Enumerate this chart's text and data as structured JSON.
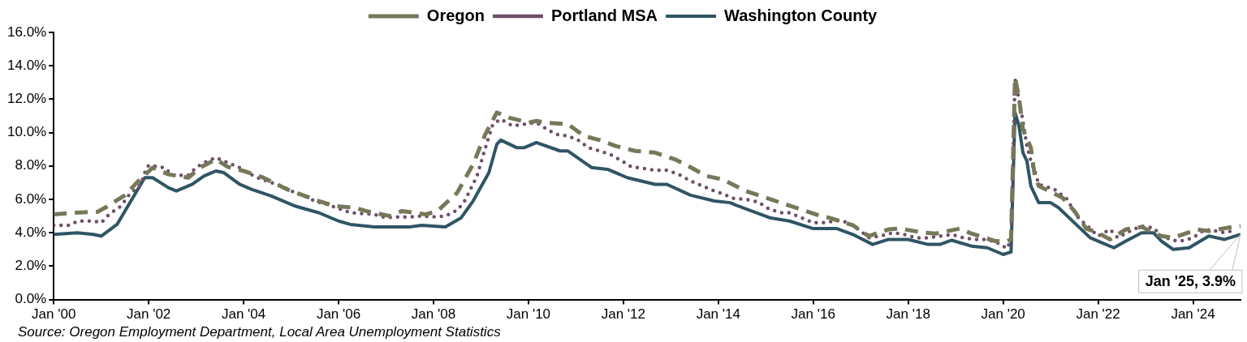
{
  "chart_data": {
    "type": "line",
    "xlim": [
      "2000-01",
      "2025-01"
    ],
    "xticks": [
      {
        "value": "2000-01",
        "label": "Jan '00"
      },
      {
        "value": "2002-01",
        "label": "Jan '02"
      },
      {
        "value": "2004-01",
        "label": "Jan '04"
      },
      {
        "value": "2006-01",
        "label": "Jan '06"
      },
      {
        "value": "2008-01",
        "label": "Jan '08"
      },
      {
        "value": "2010-01",
        "label": "Jan '10"
      },
      {
        "value": "2012-01",
        "label": "Jan '12"
      },
      {
        "value": "2014-01",
        "label": "Jan '14"
      },
      {
        "value": "2016-01",
        "label": "Jan '16"
      },
      {
        "value": "2018-01",
        "label": "Jan '18"
      },
      {
        "value": "2020-01",
        "label": "Jan '20"
      },
      {
        "value": "2022-01",
        "label": "Jan '22"
      },
      {
        "value": "2024-01",
        "label": "Jan '24"
      }
    ],
    "ylim": [
      0,
      16
    ],
    "yticks": [
      {
        "value": 0,
        "label": "0.0%"
      },
      {
        "value": 2,
        "label": "2.0%"
      },
      {
        "value": 4,
        "label": "4.0%"
      },
      {
        "value": 6,
        "label": "6.0%"
      },
      {
        "value": 8,
        "label": "8.0%"
      },
      {
        "value": 10,
        "label": "10.0%"
      },
      {
        "value": 12,
        "label": "12.0%"
      },
      {
        "value": 14,
        "label": "14.0%"
      },
      {
        "value": 16,
        "label": "16.0%"
      }
    ],
    "grid": false,
    "legend": "top",
    "marker": "none",
    "series": [
      {
        "name": "Oregon",
        "color": "#77785a",
        "line_style": "dashed",
        "x": [
          "2000-01",
          "2000-06",
          "2000-12",
          "2001-02",
          "2001-07",
          "2001-10",
          "2002-02",
          "2002-06",
          "2002-11",
          "2003-02",
          "2003-06",
          "2003-09",
          "2004-01",
          "2004-06",
          "2004-12",
          "2005-08",
          "2005-12",
          "2006-05",
          "2006-08",
          "2007-02",
          "2007-05",
          "2007-11",
          "2008-02",
          "2008-07",
          "2008-11",
          "2009-02",
          "2009-05",
          "2009-08",
          "2010-01",
          "2010-03",
          "2010-05",
          "2010-11",
          "2011-03",
          "2011-07",
          "2011-11",
          "2012-04",
          "2012-09",
          "2013-02",
          "2013-05",
          "2013-10",
          "2014-02",
          "2014-08",
          "2015-06",
          "2016-03",
          "2016-05",
          "2016-11",
          "2017-03",
          "2017-08",
          "2017-11",
          "2018-05",
          "2018-08",
          "2019-02",
          "2019-05",
          "2019-11",
          "2020-02",
          "2020-03",
          "2020-04",
          "2020-05",
          "2020-06",
          "2020-08",
          "2020-09",
          "2020-10",
          "2021-04",
          "2021-07",
          "2021-10",
          "2022-01",
          "2022-04",
          "2022-08",
          "2022-12",
          "2023-05",
          "2023-08",
          "2024-02",
          "2024-05",
          "2024-11",
          "2025-01"
        ],
        "values": [
          5.1,
          5.2,
          5.25,
          5.5,
          6.25,
          7.0,
          7.9,
          7.5,
          7.3,
          7.9,
          8.4,
          7.95,
          7.7,
          7.3,
          6.6,
          5.9,
          5.6,
          5.5,
          5.3,
          5.0,
          5.3,
          5.1,
          5.3,
          6.4,
          8.1,
          9.85,
          11.2,
          10.9,
          10.6,
          10.7,
          10.6,
          10.5,
          9.8,
          9.55,
          9.2,
          8.9,
          8.8,
          8.4,
          8.05,
          7.4,
          7.2,
          6.5,
          5.7,
          5.0,
          4.9,
          4.45,
          3.8,
          4.2,
          4.25,
          4.0,
          3.95,
          4.25,
          3.95,
          3.5,
          3.5,
          3.6,
          13.3,
          12.1,
          10.2,
          9.1,
          7.4,
          6.8,
          6.1,
          5.3,
          4.25,
          4.0,
          3.6,
          4.2,
          4.35,
          3.8,
          3.7,
          4.2,
          4.1,
          4.35,
          4.4
        ]
      },
      {
        "name": "Portland MSA",
        "color": "#6e5068",
        "line_style": "dotted",
        "x": [
          "2000-01",
          "2000-05",
          "2000-07",
          "2000-11",
          "2001-01",
          "2001-03",
          "2001-06",
          "2001-08",
          "2001-11",
          "2001-12",
          "2002-01",
          "2002-05",
          "2002-07",
          "2002-11",
          "2003-01",
          "2003-03",
          "2003-06",
          "2003-09",
          "2003-12",
          "2004-02",
          "2004-05",
          "2004-08",
          "2004-11",
          "2005-02",
          "2005-05",
          "2005-07",
          "2005-10",
          "2006-01",
          "2006-04",
          "2006-07",
          "2006-10",
          "2007-01",
          "2007-04",
          "2007-07",
          "2007-10",
          "2008-01",
          "2008-04",
          "2008-07",
          "2008-09",
          "2008-12",
          "2009-01",
          "2009-02",
          "2009-04",
          "2009-06",
          "2009-09",
          "2009-12",
          "2010-03",
          "2010-05",
          "2010-08",
          "2010-11",
          "2011-02",
          "2011-04",
          "2011-07",
          "2011-10",
          "2012-01",
          "2012-03",
          "2012-06",
          "2012-09",
          "2012-12",
          "2013-03",
          "2013-06",
          "2013-09",
          "2013-12",
          "2014-02",
          "2014-05",
          "2014-08",
          "2014-11",
          "2015-02",
          "2015-05",
          "2015-07",
          "2015-10",
          "2016-01",
          "2016-04",
          "2016-07",
          "2016-10",
          "2017-01",
          "2017-03",
          "2017-06",
          "2017-09",
          "2017-12",
          "2018-03",
          "2018-06",
          "2018-09",
          "2018-12",
          "2019-03",
          "2019-06",
          "2019-09",
          "2019-12",
          "2020-02",
          "2020-03",
          "2020-04",
          "2020-05",
          "2020-06",
          "2020-07",
          "2020-08",
          "2020-09",
          "2020-10",
          "2021-02",
          "2021-05",
          "2021-08",
          "2021-11",
          "2022-01",
          "2022-04",
          "2022-06",
          "2022-09",
          "2022-12",
          "2023-03",
          "2023-05",
          "2023-08",
          "2023-10",
          "2024-01",
          "2024-04",
          "2024-07",
          "2024-09",
          "2024-12"
        ],
        "values": [
          4.45,
          4.45,
          4.7,
          4.7,
          4.6,
          5.1,
          5.6,
          6.25,
          6.9,
          7.6,
          8.05,
          7.9,
          7.45,
          7.45,
          7.9,
          8.2,
          8.5,
          8.2,
          7.9,
          7.6,
          7.25,
          7.0,
          6.75,
          6.4,
          6.15,
          5.9,
          5.7,
          5.45,
          5.2,
          5.15,
          5.1,
          4.9,
          4.95,
          4.95,
          5.0,
          4.95,
          5.0,
          5.35,
          5.95,
          7.4,
          8.2,
          9.0,
          10.5,
          10.8,
          10.4,
          10.5,
          10.6,
          10.3,
          9.9,
          9.8,
          9.5,
          9.1,
          8.9,
          8.65,
          8.25,
          7.95,
          7.85,
          7.75,
          7.75,
          7.5,
          7.1,
          6.8,
          6.5,
          6.35,
          6.05,
          6.0,
          5.85,
          5.4,
          5.2,
          5.2,
          4.9,
          4.6,
          4.6,
          4.75,
          4.6,
          4.1,
          3.7,
          3.8,
          4.0,
          3.9,
          3.7,
          3.7,
          3.8,
          3.9,
          3.7,
          3.6,
          3.6,
          3.35,
          3.05,
          3.6,
          13.2,
          12.0,
          10.7,
          9.2,
          8.3,
          7.7,
          6.9,
          6.6,
          6.05,
          4.9,
          4.25,
          3.8,
          4.2,
          3.7,
          4.1,
          4.4,
          4.3,
          3.8,
          3.55,
          3.5,
          3.7,
          4.2,
          4.1,
          4.0,
          4.2
        ]
      },
      {
        "name": "Washington County",
        "color": "#2f5564",
        "line_style": "solid",
        "x": [
          "2000-01",
          "2000-07",
          "2000-11",
          "2001-01",
          "2001-05",
          "2001-08",
          "2001-12",
          "2002-02",
          "2002-06",
          "2002-08",
          "2002-12",
          "2003-03",
          "2003-06",
          "2003-08",
          "2003-12",
          "2004-03",
          "2004-08",
          "2005-02",
          "2005-08",
          "2006-01",
          "2006-04",
          "2006-10",
          "2007-07",
          "2007-10",
          "2008-04",
          "2008-08",
          "2008-11",
          "2009-03",
          "2009-05",
          "2009-06",
          "2009-10",
          "2009-12",
          "2010-03",
          "2010-09",
          "2010-11",
          "2011-05",
          "2011-09",
          "2012-02",
          "2012-09",
          "2012-12",
          "2013-06",
          "2013-12",
          "2014-04",
          "2014-06",
          "2015-02",
          "2015-07",
          "2016-01",
          "2016-07",
          "2016-11",
          "2017-04",
          "2017-08",
          "2018-01",
          "2018-06",
          "2018-09",
          "2018-12",
          "2019-05",
          "2019-09",
          "2020-01",
          "2020-03",
          "2020-04",
          "2020-05",
          "2020-06",
          "2020-07",
          "2020-08",
          "2020-10",
          "2021-01",
          "2021-03",
          "2021-07",
          "2021-11",
          "2022-02",
          "2022-05",
          "2022-08",
          "2022-12",
          "2023-03",
          "2023-05",
          "2023-08",
          "2023-12",
          "2024-05",
          "2024-09",
          "2025-01"
        ],
        "values": [
          3.9,
          4.0,
          3.9,
          3.8,
          4.5,
          5.7,
          7.3,
          7.3,
          6.7,
          6.5,
          6.9,
          7.4,
          7.7,
          7.6,
          6.9,
          6.6,
          6.2,
          5.6,
          5.2,
          4.7,
          4.5,
          4.35,
          4.35,
          4.45,
          4.35,
          4.9,
          5.9,
          7.6,
          9.3,
          9.55,
          9.1,
          9.1,
          9.4,
          8.9,
          8.9,
          7.9,
          7.8,
          7.3,
          6.9,
          6.9,
          6.25,
          5.9,
          5.8,
          5.6,
          4.9,
          4.7,
          4.25,
          4.25,
          3.9,
          3.3,
          3.6,
          3.6,
          3.3,
          3.3,
          3.55,
          3.2,
          3.1,
          2.7,
          2.85,
          11.2,
          10.4,
          8.8,
          8.3,
          6.8,
          5.8,
          5.8,
          5.5,
          4.6,
          3.7,
          3.4,
          3.1,
          3.5,
          4.0,
          4.0,
          3.5,
          3.0,
          3.1,
          3.8,
          3.6,
          3.9
        ]
      }
    ],
    "annotations": [
      {
        "text": "Jan '25, 3.9%",
        "x": "2025-01",
        "y": 3.9
      },
      "Source: Oregon Employment Department, Local Area Unemployment Statistics"
    ]
  }
}
